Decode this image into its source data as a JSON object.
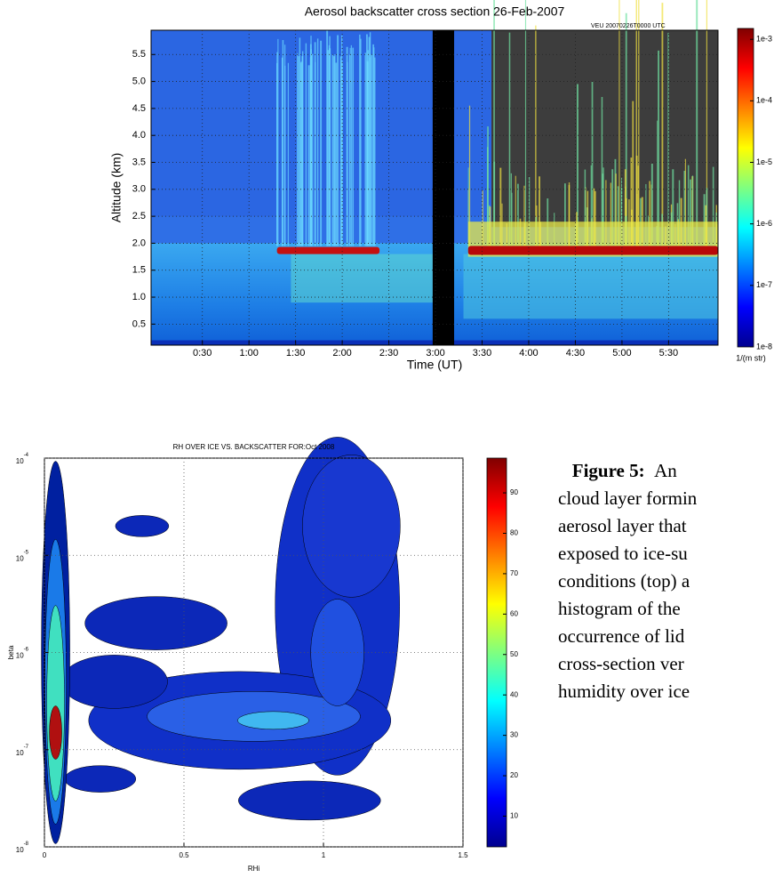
{
  "chart_data": [
    {
      "type": "heatmap",
      "title": "Aerosol backscatter cross section  26-Feb-2007",
      "annotation": "VEU    20070226T0000 UTC",
      "xlabel": "Time (UT)",
      "ylabel": "Altitude (km)",
      "xlim": [
        -0.05,
        6.03
      ],
      "xticks": [
        {
          "value": 0.5,
          "label": "0:30"
        },
        {
          "value": 1,
          "label": "1:00"
        },
        {
          "value": 1.5,
          "label": "1:30"
        },
        {
          "value": 2,
          "label": "2:00"
        },
        {
          "value": 2.5,
          "label": "2:30"
        },
        {
          "value": 3,
          "label": "3:00"
        },
        {
          "value": 3.5,
          "label": "3:30"
        },
        {
          "value": 4,
          "label": "4:00"
        },
        {
          "value": 4.5,
          "label": "4:30"
        },
        {
          "value": 5,
          "label": "5:00"
        },
        {
          "value": 5.5,
          "label": "5:30"
        }
      ],
      "ylim": [
        0.11,
        5.95
      ],
      "yticks": [
        0.5,
        {
          "value": 1,
          "label": "1.0"
        },
        1.5,
        {
          "value": 2,
          "label": "2.0"
        },
        2.5,
        {
          "value": 3,
          "label": "3.0"
        },
        3.5,
        {
          "value": 4,
          "label": "4.0"
        },
        4.5,
        {
          "value": 5,
          "label": "5.0"
        },
        5.5
      ],
      "grid": true,
      "colorbar": {
        "colormap": "jet",
        "log": true,
        "clim": [
          1e-08,
          0.0015
        ],
        "label": "1/(m str)",
        "ticks": [
          {
            "value": 0.001,
            "label": "1e-3"
          },
          {
            "value": 0.0001,
            "label": "1e-4"
          },
          {
            "value": 1e-05,
            "label": "1e-5"
          },
          {
            "value": 1e-06,
            "label": "1e-6"
          },
          {
            "value": 1e-07,
            "label": "1e-7"
          },
          {
            "value": 1e-08,
            "label": "1e-8"
          }
        ]
      }
    },
    {
      "type": "contour",
      "title": "RH OVER ICE VS. BACKSCATTER FOR:Oct 2008",
      "xlabel": "RHi",
      "ylabel": "beta",
      "xlim": [
        0,
        1.5
      ],
      "xticks": [
        0,
        0.5,
        1,
        1.5
      ],
      "ylim": [
        1e-08,
        0.0001
      ],
      "ylog": true,
      "yticks": [
        {
          "value": 1e-08,
          "label": "10",
          "sup": "-8"
        },
        {
          "value": 1e-07,
          "label": "10",
          "sup": "-7"
        },
        {
          "value": 1e-06,
          "label": "10",
          "sup": "-6"
        },
        {
          "value": 1e-05,
          "label": "10",
          "sup": "-5"
        },
        {
          "value": 0.0001,
          "label": "10",
          "sup": "-4"
        }
      ],
      "grid": true,
      "colorbar": {
        "colormap": "jet",
        "log": false,
        "clim": [
          2.4,
          98.6
        ],
        "ticks": [
          10,
          20,
          30,
          40,
          50,
          60,
          70,
          80,
          90
        ]
      }
    }
  ],
  "caption": {
    "label": "Figure 5:",
    "lines": [
      "An",
      "cloud layer formin",
      "aerosol layer that",
      "exposed to ice-su",
      "conditions (top) a",
      "histogram of the",
      "occurrence of lid",
      "cross-section ver",
      "humidity over ice"
    ]
  }
}
